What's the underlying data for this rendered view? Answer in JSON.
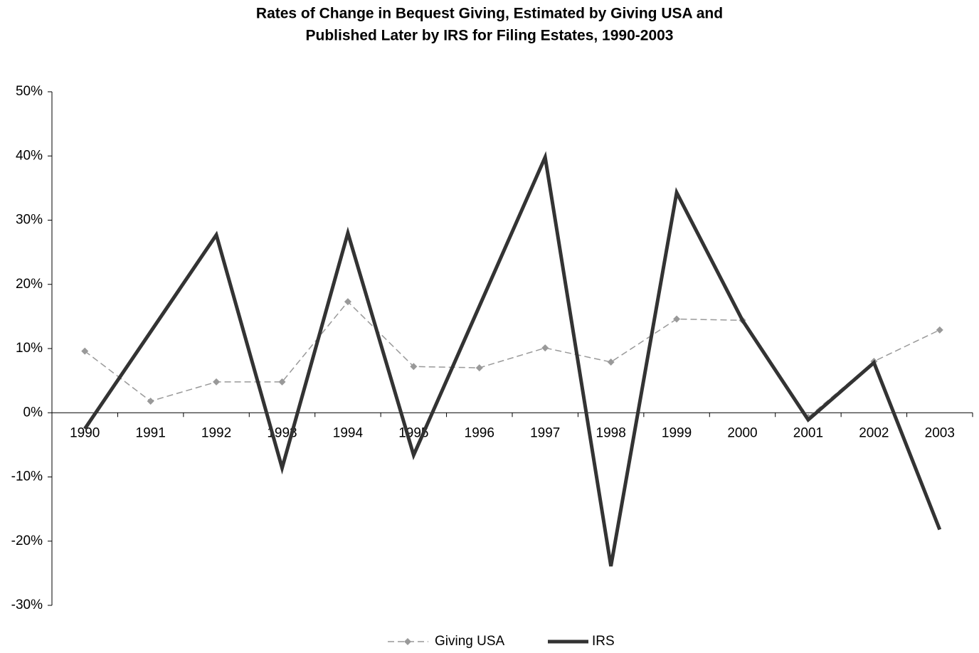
{
  "chart_data": {
    "type": "line",
    "title": [
      "Rates of Change in Bequest Giving, Estimated by Giving USA and",
      "Published Later by IRS for Filing Estates, 1990-2003"
    ],
    "categories": [
      "1990",
      "1991",
      "1992",
      "1993",
      "1994",
      "1995",
      "1996",
      "1997",
      "1998",
      "1999",
      "2000",
      "2001",
      "2002",
      "2003"
    ],
    "series": [
      {
        "name": "Giving USA",
        "color": "#999999",
        "dashed": true,
        "marker": "diamond",
        "width": 1.5,
        "values": [
          9.6,
          1.8,
          4.8,
          4.8,
          17.3,
          7.2,
          7.0,
          10.1,
          7.9,
          14.6,
          14.4,
          -0.7,
          8.0,
          12.9
        ]
      },
      {
        "name": "IRS",
        "color": "#333333",
        "dashed": false,
        "marker": null,
        "width": 5,
        "values": [
          -2.5,
          12.6,
          27.7,
          -8.6,
          28.0,
          -6.6,
          16.6,
          39.8,
          -23.9,
          34.3,
          14.4,
          -1.1,
          7.8,
          -18.2
        ]
      }
    ],
    "ylim": [
      -30,
      50
    ],
    "yticks": [
      {
        "value": -30,
        "label": "-30%"
      },
      {
        "value": -20,
        "label": "-20%"
      },
      {
        "value": -10,
        "label": "-10%"
      },
      {
        "value": 0,
        "label": "0%"
      },
      {
        "value": 10,
        "label": "10%"
      },
      {
        "value": 20,
        "label": "20%"
      },
      {
        "value": 30,
        "label": "30%"
      },
      {
        "value": 40,
        "label": "40%"
      },
      {
        "value": 50,
        "label": "50%"
      }
    ],
    "grid": false,
    "legend": "bottom"
  }
}
